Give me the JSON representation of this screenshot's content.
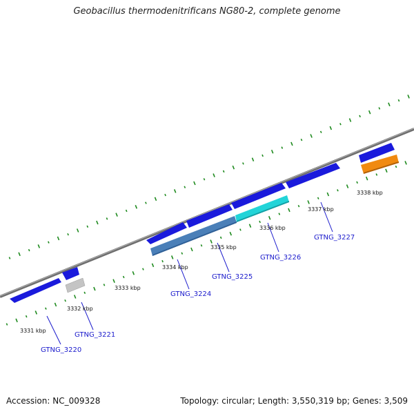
{
  "title": "Geobacillus thermodenitrificans NG80-2, complete genome",
  "footer": {
    "accession_label": "Accession:",
    "accession": "NC_009328",
    "topology_label": "Topology:",
    "topology": "circular",
    "length_label": "Length:",
    "length": "3,550,319 bp",
    "genes_label": "Genes:",
    "genes": "3,509"
  },
  "scale_labels": [
    "3331 kbp",
    "3332 kbp",
    "3333 kbp",
    "3334 kbp",
    "3335 kbp",
    "3336 kbp",
    "3337 kbp",
    "3338 kbp"
  ],
  "gene_labels": [
    "GTNG_3220",
    "GTNG_3221",
    "GTNG_3224",
    "GTNG_3225",
    "GTNG_3226",
    "GTNG_3227"
  ],
  "colors": {
    "backbone": "#808080",
    "tick": "#1e8a1e",
    "cds_blue": "#1a1adc",
    "cds_steel": "#4a7fb8",
    "cds_cyan": "#22d4d8",
    "cds_grey": "#c4c4c4",
    "cds_orange": "#f08a10",
    "label": "#1a1acc"
  }
}
